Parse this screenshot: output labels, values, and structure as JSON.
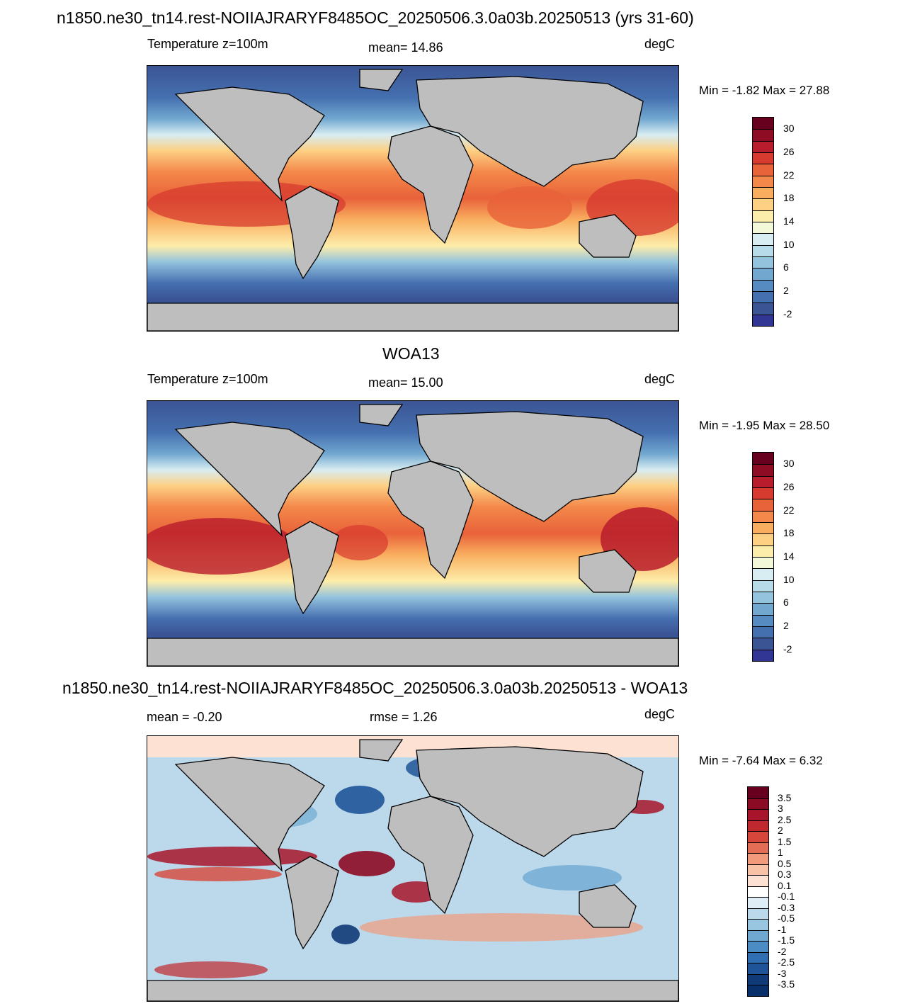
{
  "panels": [
    {
      "title": "n1850.ne30_tn14.rest-NOIIAJRARYF8485OC_20250506.3.0a03b.20250513 (yrs 31-60)",
      "left_label": "Temperature z=100m",
      "center_label": "mean=  14.86",
      "units": "degC",
      "minmax": "Min =  -1.82 Max =  27.88",
      "colorbar_labels": [
        "30",
        "26",
        "22",
        "18",
        "14",
        "10",
        "6",
        "2",
        "-2"
      ],
      "colorbar_colors": [
        "#67001f",
        "#8f0c25",
        "#b91c2c",
        "#d73b2f",
        "#e8623a",
        "#f4884a",
        "#f9ae5f",
        "#fdd084",
        "#fdedaa",
        "#f2f8d8",
        "#d8edf2",
        "#b7dbe9",
        "#94c3de",
        "#72a8d0",
        "#568bc1",
        "#4570b0",
        "#3b5494",
        "#313695"
      ]
    },
    {
      "title": "WOA13",
      "left_label": "Temperature z=100m",
      "center_label": "mean=  15.00",
      "units": "degC",
      "minmax": "Min =  -1.95 Max =  28.50",
      "colorbar_labels": [
        "30",
        "26",
        "22",
        "18",
        "14",
        "10",
        "6",
        "2",
        "-2"
      ],
      "colorbar_colors": [
        "#67001f",
        "#8f0c25",
        "#b91c2c",
        "#d73b2f",
        "#e8623a",
        "#f4884a",
        "#f9ae5f",
        "#fdd084",
        "#fdedaa",
        "#f2f8d8",
        "#d8edf2",
        "#b7dbe9",
        "#94c3de",
        "#72a8d0",
        "#568bc1",
        "#4570b0",
        "#3b5494",
        "#313695"
      ]
    },
    {
      "title": "n1850.ne30_tn14.rest-NOIIAJRARYF8485OC_20250506.3.0a03b.20250513 - WOA13",
      "left_label": "mean =  -0.20",
      "center_label": "rmse =   1.26",
      "units": "degC",
      "minmax": "Min =  -7.64 Max =   6.32",
      "colorbar_labels": [
        "3.5",
        "3",
        "2.5",
        "2",
        "1.5",
        "1",
        "0.5",
        "0.3",
        "0.1",
        "-0.1",
        "-0.3",
        "-0.5",
        "-1",
        "-1.5",
        "-2",
        "-2.5",
        "-3",
        "-3.5"
      ],
      "colorbar_colors": [
        "#67001f",
        "#8b0a24",
        "#a8152b",
        "#c0282f",
        "#d6463a",
        "#e36e55",
        "#f19a7c",
        "#f8c2a7",
        "#fde2d4",
        "#ffffff",
        "#dfedf6",
        "#bcd9ec",
        "#98c5e0",
        "#6fa9d2",
        "#4a8cc3",
        "#2f6fb1",
        "#1f5498",
        "#103a78",
        "#08306b"
      ]
    }
  ]
}
